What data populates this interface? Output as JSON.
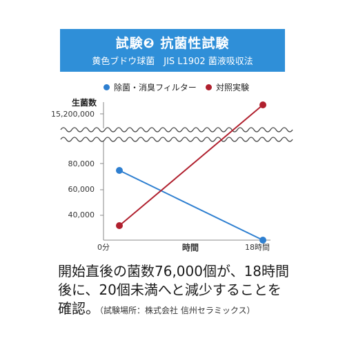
{
  "header": {
    "title": "試験❷ 抗菌性試験",
    "subtitle": "黄色ブドウ球菌　JIS L1902 菌液吸収法",
    "bg_color": "#2f8fd8"
  },
  "chart_data": {
    "type": "line",
    "ylabel": "生菌数",
    "xlabel": "時間",
    "categories": [
      "0分",
      "18時間"
    ],
    "y_tick_labels": [
      "15,200,000",
      "80,000",
      "60,000",
      "40,000"
    ],
    "axis_break": true,
    "series": [
      {
        "name": "除菌・消臭フィルター",
        "color": "#2e7fd0",
        "values": [
          76000,
          20
        ]
      },
      {
        "name": "対照実験",
        "color": "#b0202e",
        "values": [
          33000,
          15200000
        ]
      }
    ],
    "legend_position": "top",
    "grid": false
  },
  "caption": {
    "text": "開始直後の菌数76,000個が、18時間後に、20個未満へと減少することを確認。",
    "source": "（試験場所：株式会社 信州セラミックス）"
  }
}
